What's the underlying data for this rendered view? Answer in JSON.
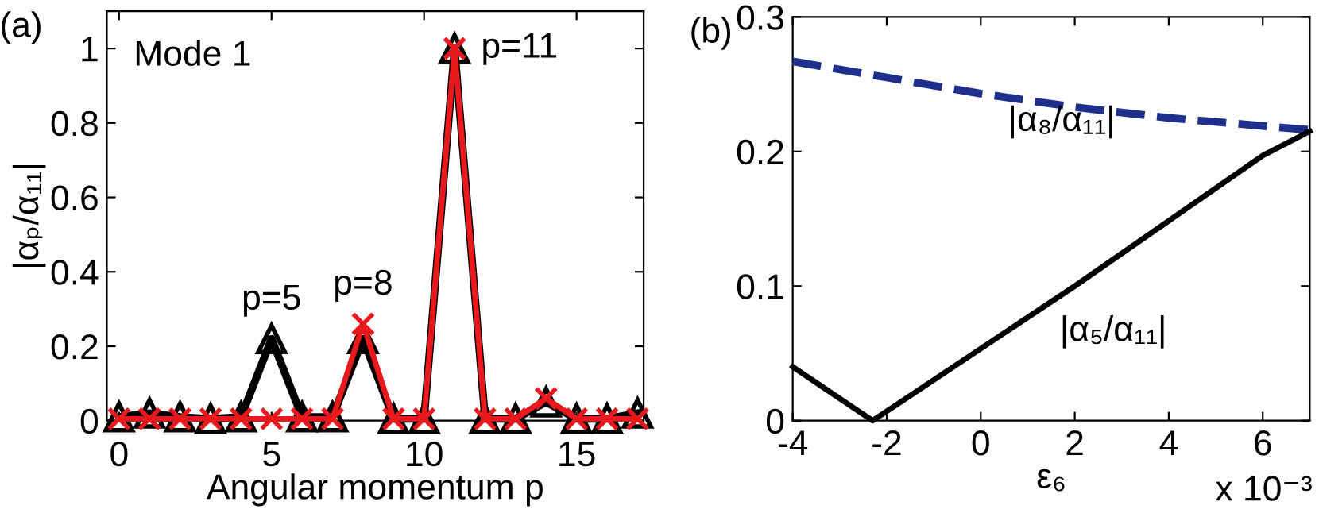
{
  "chart_data": [
    {
      "type": "line",
      "title": "(a)",
      "xlabel": "Angular momentum p",
      "ylabel": "|αₚ/α₁₁|",
      "x": [
        0,
        1,
        2,
        3,
        4,
        5,
        6,
        7,
        8,
        9,
        10,
        11,
        12,
        13,
        14,
        15,
        16,
        17
      ],
      "xlim": [
        -0.4,
        17.2
      ],
      "xticks": [
        0,
        5,
        10,
        15
      ],
      "ylim": [
        0,
        1.1
      ],
      "yticks": [
        0,
        0.2,
        0.4,
        0.6,
        0.8,
        1
      ],
      "series": [
        {
          "color": "#000000",
          "marker": "triangle",
          "values": [
            0.01,
            0.02,
            0.01,
            0.005,
            0.01,
            0.22,
            0.01,
            0.01,
            0.22,
            0.005,
            0.005,
            1,
            0.005,
            0.005,
            0.05,
            0.005,
            0.005,
            0.02
          ]
        },
        {
          "color": "#e8191c",
          "marker": "cross",
          "values": [
            0.005,
            0.005,
            0.005,
            0.005,
            0.005,
            0.005,
            0.005,
            0.005,
            0.26,
            0.005,
            0.005,
            1,
            0.005,
            0.005,
            0.06,
            0.005,
            0.005,
            0.005
          ]
        }
      ],
      "annotations": [
        "Mode 1",
        {
          "text": "p=5",
          "x": 5,
          "y": 0.22
        },
        {
          "text": "p=8",
          "x": 8,
          "y": 0.26
        },
        {
          "text": "p=11",
          "x": 11,
          "y": 1
        }
      ],
      "grid": false,
      "legend": false
    },
    {
      "type": "line",
      "title": "(b)",
      "xlabel": "ε₆",
      "xlim": [
        -4,
        7
      ],
      "xticks": [
        -4,
        -2,
        0,
        2,
        4,
        6
      ],
      "ylim": [
        0,
        0.3
      ],
      "yticks": [
        0,
        0.1,
        0.2,
        0.3
      ],
      "series": [
        {
          "name": "|α₈/α₁₁|",
          "color": "#1f2f8c",
          "line_style": "dashed",
          "x": [
            -4,
            -2,
            0,
            2,
            4,
            6,
            7
          ],
          "values": [
            0.267,
            0.255,
            0.243,
            0.233,
            0.225,
            0.219,
            0.216
          ]
        },
        {
          "name": "|α₅/α₁₁|",
          "color": "#000000",
          "line_style": "solid",
          "x": [
            -4,
            -2.3,
            2,
            6,
            7
          ],
          "values": [
            0.04,
            0,
            0.1,
            0.197,
            0.215
          ]
        }
      ],
      "annotations": [
        "x 10⁻³"
      ],
      "grid": false,
      "legend": false
    }
  ]
}
